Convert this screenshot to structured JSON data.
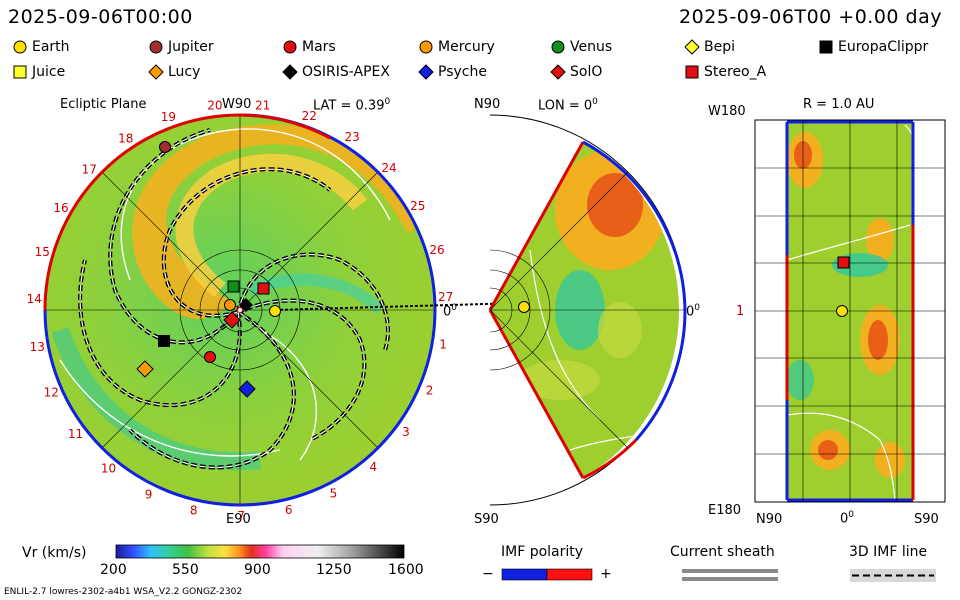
{
  "header": {
    "datetime_left": "2025-09-06T00:00",
    "datetime_right": "2025-09-06T00 +0.00 day"
  },
  "legend": [
    {
      "label": "Earth",
      "shape": "circle",
      "color": "#ffe000"
    },
    {
      "label": "Jupiter",
      "shape": "circle",
      "color": "#a03030"
    },
    {
      "label": "Mars",
      "shape": "circle",
      "color": "#e01010"
    },
    {
      "label": "Mercury",
      "shape": "circle",
      "color": "#ff9a00"
    },
    {
      "label": "Venus",
      "shape": "circle",
      "color": "#10901a"
    },
    {
      "label": "Bepi",
      "shape": "diamond",
      "color": "#ffff30"
    },
    {
      "label": "EuropaClippr",
      "shape": "square",
      "color": "#000000"
    },
    {
      "label": "Juice",
      "shape": "square",
      "color": "#ffff30"
    },
    {
      "label": "Lucy",
      "shape": "diamond",
      "color": "#ff9a00"
    },
    {
      "label": "OSIRIS-APEX",
      "shape": "diamond",
      "color": "#000000"
    },
    {
      "label": "Psyche",
      "shape": "diamond",
      "color": "#1020e0"
    },
    {
      "label": "SolO",
      "shape": "diamond",
      "color": "#e01010"
    },
    {
      "label": "Stereo_A",
      "shape": "square",
      "color": "#e01010"
    }
  ],
  "panels": {
    "ecliptic": {
      "title": "Ecliptic Plane",
      "top_label": "W90",
      "lat_label": "LAT = 0.39",
      "lat_degree": "0",
      "bottom_label": "E90",
      "right_label": "0",
      "right_degree": "0",
      "rotation_numbers": [
        "20",
        "21",
        "22",
        "23",
        "24",
        "25",
        "26",
        "27",
        "1",
        "2",
        "3",
        "4",
        "5",
        "6",
        "7",
        "8",
        "9",
        "10",
        "11",
        "12",
        "13",
        "14",
        "15",
        "16",
        "17",
        "18",
        "19"
      ]
    },
    "meridional": {
      "top_label": "N90",
      "lon_label": "LON = 0",
      "lon_degree": "0",
      "bottom_label": "S90",
      "right_label": "0",
      "right_degree": "0"
    },
    "map": {
      "title": "R = 1.0 AU",
      "y_top": "W180",
      "y_mid": "1",
      "y_bottom": "E180",
      "x_left": "N90",
      "x_mid": "0",
      "x_mid_degree": "0",
      "x_right": "S90"
    }
  },
  "colorbar": {
    "label": "Vr (km/s)",
    "ticks": [
      "200",
      "550",
      "900",
      "1250",
      "1600"
    ]
  },
  "imf": {
    "label": "IMF polarity",
    "minus": "−",
    "plus": "+"
  },
  "current_sheath": {
    "label": "Current sheath"
  },
  "imf_line": {
    "label": "3D IMF line"
  },
  "footer": {
    "left": "ENLIL-2.7 lowres-2302-a4b1 WSA_V2.2 GONGZ-2302"
  }
}
